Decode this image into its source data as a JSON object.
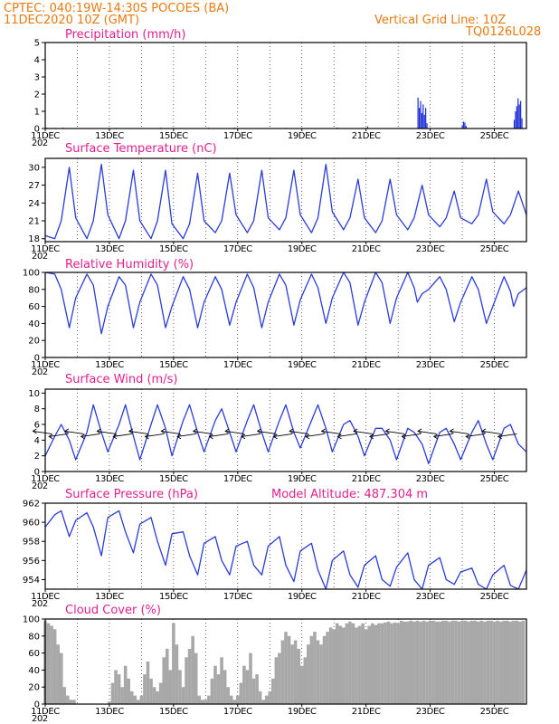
{
  "header": {
    "line1": "CPTEC:   040:19W-14:30S   POCOES (BA)",
    "line2": "11DEC2020 10Z (GMT)",
    "grid_note": "Vertical Grid Line: 10Z",
    "model": "TQ0126L028"
  },
  "colors": {
    "header": "#e87a10",
    "panel_title": "#e0208c",
    "line": "#2a3cd8",
    "bars": "#1a2bd6",
    "cloud": "#a8a8a8",
    "grid": "#000000"
  },
  "x_axis": {
    "start_day": 11,
    "end_day": 26,
    "tick_labels": [
      "11DEC",
      "13DEC",
      "15DEC",
      "17DEC",
      "19DEC",
      "21DEC",
      "23DEC",
      "25DEC"
    ],
    "tick_days": [
      11,
      13,
      15,
      17,
      19,
      21,
      23,
      25
    ],
    "cut_year_label": "202"
  },
  "chart_data": [
    {
      "type": "bar",
      "title": "Precipitation (mm/h)",
      "ylim": [
        0,
        5
      ],
      "yticks": [
        0,
        1,
        2,
        3,
        4,
        5
      ],
      "x": [
        11.05,
        11.3,
        11.55,
        12.4,
        13.2,
        14.6,
        15.4,
        16.1,
        16.9,
        17.7,
        18.5,
        19.3,
        20.1,
        20.9,
        21.05,
        22.62,
        22.66,
        22.7,
        22.74,
        22.78,
        22.82,
        22.86,
        22.9,
        24.0,
        24.04,
        24.08,
        24.12,
        25.62,
        25.66,
        25.7,
        25.74,
        25.78,
        25.82,
        25.86
      ],
      "values": [
        0.05,
        0.04,
        0.05,
        0.03,
        0.04,
        0.05,
        0.03,
        0.04,
        0.05,
        0.03,
        0.04,
        0.03,
        0.05,
        0.04,
        0.12,
        1.8,
        1.2,
        1.6,
        0.9,
        1.4,
        0.8,
        1.2,
        0.3,
        0.2,
        0.4,
        0.35,
        0.15,
        0.5,
        1.0,
        1.3,
        1.75,
        1.4,
        1.6,
        0.6
      ]
    },
    {
      "type": "line",
      "title": "Surface Temperature (nC)",
      "ylim": [
        17.5,
        31.5
      ],
      "yticks": [
        18,
        21,
        24,
        27,
        30
      ],
      "x": [
        11.0,
        11.3,
        11.5,
        11.75,
        11.95,
        12.3,
        12.5,
        12.75,
        12.95,
        13.3,
        13.5,
        13.75,
        13.95,
        14.3,
        14.5,
        14.75,
        14.95,
        15.3,
        15.5,
        15.75,
        15.95,
        16.3,
        16.5,
        16.75,
        16.95,
        17.3,
        17.5,
        17.75,
        17.95,
        18.3,
        18.5,
        18.75,
        18.95,
        19.3,
        19.5,
        19.75,
        19.95,
        20.3,
        20.5,
        20.75,
        20.95,
        21.3,
        21.5,
        21.75,
        21.95,
        22.3,
        22.5,
        22.75,
        22.95,
        23.3,
        23.5,
        23.75,
        23.95,
        24.3,
        24.5,
        24.75,
        24.95,
        25.3,
        25.5,
        25.75,
        26.0
      ],
      "values": [
        18.5,
        18.0,
        21.0,
        30.0,
        21.5,
        18.0,
        21.0,
        30.5,
        22.0,
        18.0,
        21.0,
        29.5,
        21.0,
        18.0,
        21.0,
        29.5,
        20.5,
        18.0,
        20.5,
        29.0,
        21.0,
        19.0,
        21.0,
        29.0,
        22.0,
        19.0,
        21.0,
        29.5,
        21.5,
        19.5,
        21.5,
        29.5,
        22.0,
        19.0,
        21.5,
        30.5,
        22.5,
        19.5,
        21.5,
        28.0,
        21.5,
        19.0,
        21.0,
        28.0,
        22.0,
        19.5,
        21.5,
        27.0,
        22.0,
        20.0,
        21.5,
        26.0,
        21.5,
        20.5,
        22.0,
        28.0,
        22.5,
        20.5,
        22.0,
        26.0,
        22.0
      ]
    },
    {
      "type": "line",
      "title": "Relative Humidity (%)",
      "ylim": [
        0,
        100
      ],
      "yticks": [
        0,
        20,
        40,
        60,
        80,
        100
      ],
      "x": [
        11.0,
        11.3,
        11.5,
        11.75,
        11.95,
        12.3,
        12.5,
        12.75,
        12.95,
        13.3,
        13.5,
        13.75,
        13.95,
        14.3,
        14.5,
        14.75,
        14.95,
        15.3,
        15.5,
        15.75,
        15.95,
        16.3,
        16.5,
        16.75,
        16.95,
        17.3,
        17.5,
        17.75,
        17.95,
        18.3,
        18.5,
        18.75,
        18.95,
        19.3,
        19.5,
        19.75,
        19.95,
        20.3,
        20.5,
        20.75,
        20.95,
        21.3,
        21.5,
        21.75,
        21.95,
        22.3,
        22.5,
        22.6,
        22.75,
        22.95,
        23.3,
        23.5,
        23.75,
        23.95,
        24.3,
        24.5,
        24.75,
        24.95,
        25.3,
        25.5,
        25.6,
        25.75,
        26.0
      ],
      "values": [
        100,
        98,
        80,
        35,
        70,
        98,
        85,
        28,
        60,
        95,
        85,
        35,
        65,
        98,
        85,
        35,
        60,
        95,
        80,
        35,
        65,
        95,
        80,
        38,
        65,
        98,
        82,
        35,
        65,
        98,
        85,
        38,
        68,
        98,
        82,
        40,
        70,
        100,
        88,
        38,
        65,
        100,
        88,
        40,
        70,
        100,
        82,
        65,
        75,
        80,
        95,
        80,
        42,
        65,
        95,
        80,
        40,
        60,
        95,
        78,
        60,
        75,
        82
      ]
    },
    {
      "type": "line",
      "title": "Surface Wind (m/s)",
      "ylim": [
        0,
        10.5
      ],
      "yticks": [
        0,
        2,
        4,
        6,
        8,
        10
      ],
      "x": [
        11.0,
        11.3,
        11.5,
        11.75,
        11.95,
        12.3,
        12.5,
        12.75,
        12.95,
        13.3,
        13.5,
        13.75,
        13.95,
        14.3,
        14.5,
        14.75,
        14.95,
        15.3,
        15.5,
        15.75,
        15.95,
        16.3,
        16.5,
        16.75,
        16.95,
        17.3,
        17.5,
        17.75,
        17.95,
        18.3,
        18.5,
        18.75,
        18.95,
        19.3,
        19.5,
        19.75,
        19.95,
        20.3,
        20.5,
        20.75,
        20.95,
        21.3,
        21.5,
        21.75,
        21.95,
        22.3,
        22.5,
        22.75,
        22.95,
        23.3,
        23.5,
        23.75,
        23.95,
        24.3,
        24.5,
        24.75,
        24.95,
        25.3,
        25.5,
        25.75,
        26.0
      ],
      "values": [
        2.0,
        4.5,
        6.0,
        4.0,
        1.5,
        5.0,
        8.5,
        5.0,
        2.5,
        6.0,
        8.5,
        4.5,
        1.5,
        6.0,
        8.5,
        5.5,
        2.0,
        6.5,
        8.5,
        5.0,
        2.5,
        6.5,
        8.0,
        5.0,
        2.5,
        6.5,
        8.5,
        5.0,
        2.5,
        6.5,
        8.5,
        5.0,
        3.0,
        6.5,
        8.5,
        5.5,
        2.5,
        6.0,
        6.5,
        4.5,
        2.0,
        5.5,
        5.5,
        4.0,
        1.5,
        5.5,
        5.0,
        3.5,
        1.0,
        5.0,
        5.5,
        3.5,
        1.5,
        5.0,
        6.5,
        3.5,
        1.5,
        5.5,
        6.0,
        3.5,
        2.5
      ]
    },
    {
      "type": "line",
      "title": "Surface Pressure (hPa)",
      "annotation": "Model Altitude: 487.304  m",
      "ylim": [
        953,
        962
      ],
      "yticks": [
        954,
        956,
        958,
        960,
        962
      ],
      "x": [
        11.0,
        11.3,
        11.5,
        11.75,
        11.95,
        12.3,
        12.5,
        12.75,
        12.95,
        13.3,
        13.5,
        13.75,
        13.95,
        14.3,
        14.5,
        14.75,
        14.95,
        15.3,
        15.5,
        15.75,
        15.95,
        16.3,
        16.5,
        16.75,
        16.95,
        17.3,
        17.5,
        17.75,
        17.95,
        18.3,
        18.5,
        18.75,
        18.95,
        19.3,
        19.5,
        19.75,
        19.95,
        20.3,
        20.5,
        20.75,
        20.95,
        21.3,
        21.5,
        21.75,
        21.95,
        22.3,
        22.5,
        22.75,
        22.95,
        23.3,
        23.5,
        23.75,
        23.95,
        24.3,
        24.5,
        24.75,
        24.95,
        25.3,
        25.5,
        25.75,
        26.0
      ],
      "values": [
        959.5,
        960.8,
        961.2,
        958.5,
        960.2,
        961.0,
        959.5,
        956.5,
        960.5,
        961.2,
        959.0,
        956.8,
        959.8,
        960.5,
        958.0,
        955.5,
        958.8,
        959.0,
        956.5,
        954.5,
        957.8,
        958.5,
        956.0,
        954.5,
        957.5,
        958.0,
        955.5,
        954.5,
        957.5,
        958.5,
        955.5,
        953.8,
        957.0,
        957.8,
        955.0,
        953.0,
        956.0,
        957.0,
        954.5,
        953.2,
        955.5,
        956.5,
        954.0,
        953.3,
        955.3,
        956.8,
        954.0,
        953.0,
        955.5,
        956.3,
        954.0,
        953.5,
        954.8,
        955.2,
        953.5,
        953.0,
        954.5,
        955.5,
        953.4,
        953.0,
        955.0
      ]
    },
    {
      "type": "bar",
      "title": "Cloud Cover (%)",
      "ylim": [
        0,
        100
      ],
      "yticks": [
        0,
        20,
        40,
        60,
        80,
        100
      ],
      "x": [
        11.0,
        11.1,
        11.2,
        11.3,
        11.4,
        11.5,
        11.6,
        11.7,
        11.8,
        11.9,
        12.0,
        12.1,
        12.2,
        12.3,
        12.4,
        12.5,
        12.6,
        12.7,
        12.8,
        12.9,
        13.0,
        13.1,
        13.2,
        13.3,
        13.4,
        13.5,
        13.6,
        13.7,
        13.8,
        13.9,
        14.0,
        14.1,
        14.2,
        14.3,
        14.4,
        14.5,
        14.6,
        14.7,
        14.8,
        14.9,
        15.0,
        15.1,
        15.2,
        15.3,
        15.4,
        15.5,
        15.6,
        15.7,
        15.8,
        15.9,
        16.0,
        16.1,
        16.2,
        16.3,
        16.4,
        16.5,
        16.6,
        16.7,
        16.8,
        16.9,
        17.0,
        17.1,
        17.2,
        17.3,
        17.4,
        17.5,
        17.6,
        17.7,
        17.8,
        17.9,
        18.0,
        18.1,
        18.2,
        18.3,
        18.4,
        18.5,
        18.6,
        18.7,
        18.8,
        18.9,
        19.0,
        19.1,
        19.2,
        19.3,
        19.4,
        19.5,
        19.6,
        19.7,
        19.8,
        19.9,
        20.0,
        20.1,
        20.2,
        20.3,
        20.4,
        20.5,
        20.6,
        20.7,
        20.8,
        20.9,
        21.0,
        21.1,
        21.2,
        21.3,
        21.4,
        21.5,
        21.6,
        21.7,
        21.8,
        21.9,
        22.0,
        22.1,
        22.2,
        22.3,
        22.4,
        22.5,
        22.6,
        22.7,
        22.8,
        22.9,
        23.0,
        23.1,
        23.2,
        23.3,
        23.4,
        23.5,
        23.6,
        23.7,
        23.8,
        23.9,
        24.0,
        24.1,
        24.2,
        24.3,
        24.4,
        24.5,
        24.6,
        24.7,
        24.8,
        24.9,
        25.0,
        25.1,
        25.2,
        25.3,
        25.4,
        25.5,
        25.6,
        25.7,
        25.8,
        25.9
      ],
      "values": [
        98,
        95,
        92,
        88,
        70,
        60,
        20,
        10,
        5,
        5,
        0,
        0,
        0,
        0,
        0,
        0,
        0,
        0,
        0,
        0,
        3,
        25,
        40,
        35,
        20,
        45,
        30,
        15,
        10,
        5,
        10,
        35,
        50,
        30,
        20,
        15,
        25,
        55,
        65,
        40,
        95,
        70,
        40,
        20,
        55,
        65,
        80,
        60,
        10,
        5,
        5,
        10,
        30,
        45,
        35,
        55,
        40,
        20,
        10,
        5,
        10,
        25,
        45,
        40,
        60,
        30,
        35,
        15,
        5,
        10,
        15,
        30,
        55,
        60,
        75,
        85,
        80,
        70,
        75,
        65,
        45,
        55,
        70,
        80,
        85,
        75,
        70,
        80,
        85,
        90,
        88,
        95,
        92,
        90,
        95,
        97,
        95,
        90,
        92,
        95,
        88,
        92,
        95,
        93,
        95,
        95,
        96,
        97,
        95,
        96,
        95,
        98,
        97,
        97,
        98,
        97,
        98,
        97,
        98,
        97,
        98,
        98,
        97,
        97,
        98,
        98,
        97,
        98,
        98,
        97,
        98,
        98,
        97,
        98,
        98,
        97,
        98,
        97,
        98,
        98,
        97,
        98,
        97,
        98,
        98,
        97,
        98,
        98,
        97,
        98
      ]
    }
  ]
}
